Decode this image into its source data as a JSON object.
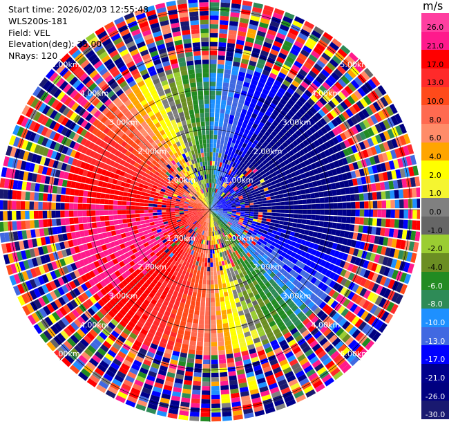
{
  "header": {
    "start_time": "Start time: 2026/02/03 12:55:48",
    "instrument": "WLS200s-181",
    "field": "Field: VEL",
    "elevation": "Elevation(deg): 35.00",
    "nrays": "NRays: 120"
  },
  "colorbar": {
    "unit": "m/s",
    "ticks": [
      "26.0",
      "21.0",
      "17.0",
      "13.0",
      "10.0",
      "8.0",
      "6.0",
      "4.0",
      "2.0",
      "1.0",
      "0.0",
      "-1.0",
      "-2.0",
      "-4.0",
      "-6.0",
      "-8.0",
      "-10.0",
      "-13.0",
      "-17.0",
      "-21.0",
      "-26.0",
      "-30.0"
    ],
    "colors": [
      "#ff3fa0",
      "#ff1a8c",
      "#ff0000",
      "#ff2a2a",
      "#ff4a1a",
      "#ff6a50",
      "#ff8c69",
      "#ffa500",
      "#ffff00",
      "#f5f530",
      "#808080",
      "#666666",
      "#9acd32",
      "#6b8e23",
      "#228b22",
      "#2e8b57",
      "#1e90ff",
      "#4169e1",
      "#0000ff",
      "#00008b",
      "#000080",
      "#191970"
    ]
  },
  "chart_data": {
    "type": "ppi",
    "field": "VEL",
    "units": "m/s",
    "nrays": 120,
    "elevation_deg": 35.0,
    "range_rings_km": [
      1,
      2,
      3,
      4,
      5
    ],
    "ring_labels": [
      "1.00km",
      "2.00km",
      "3.00km",
      "4.00km",
      "5.00km"
    ],
    "max_range_km": 5.3,
    "vmin": -30.0,
    "vmax": 26.0,
    "pattern": {
      "wind_from_deg": 250,
      "vmax_near": 22,
      "clean_range_km": 3.6
    }
  }
}
